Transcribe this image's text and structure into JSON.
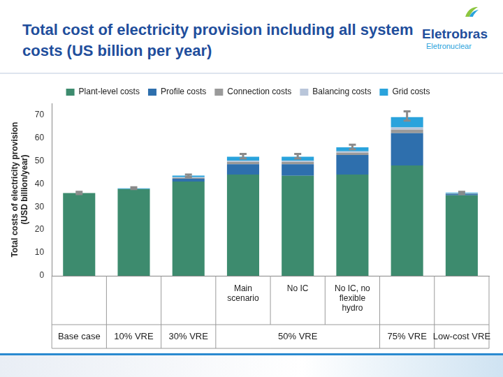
{
  "header": {
    "title": "Total cost of electricity provision including all system costs (US billion per year)",
    "logo_text": "Eletrobras",
    "logo_subtext": "Eletronuclear"
  },
  "chart_data": {
    "type": "bar",
    "stacked": true,
    "y_label": "Total costs of electricity provision (USD billion/year)",
    "categories": [
      null,
      null,
      null,
      "Main scenario",
      "No IC",
      "No IC, no flexible hydro",
      null,
      null
    ],
    "category_groups": [
      {
        "label": "Base case",
        "count": 1
      },
      {
        "label": "10% VRE",
        "count": 1
      },
      {
        "label": "30% VRE",
        "count": 1
      },
      {
        "label": "50% VRE",
        "count": 3
      },
      {
        "label": "75% VRE",
        "count": 1
      },
      {
        "label": "Low-cost VRE",
        "count": 1
      }
    ],
    "series": [
      {
        "name": "Plant-level costs",
        "color": "#3d8b6e",
        "values": [
          36,
          37.7,
          41,
          44,
          43.5,
          44,
          48,
          35
        ]
      },
      {
        "name": "Profile costs",
        "color": "#2e6fad",
        "values": [
          0,
          0,
          1.2,
          4.5,
          5,
          8.5,
          14,
          0.5
        ]
      },
      {
        "name": "Connection costs",
        "color": "#9a9a9a",
        "values": [
          0,
          0,
          0.4,
          1,
          1,
          1,
          1.5,
          0.2
        ]
      },
      {
        "name": "Balancing costs",
        "color": "#b9c6da",
        "values": [
          0,
          0,
          0.3,
          0.5,
          0.5,
          0.6,
          1,
          0.1
        ]
      },
      {
        "name": "Grid costs",
        "color": "#2aa3dc",
        "values": [
          0,
          0.3,
          0.7,
          1.8,
          1.8,
          1.8,
          4.5,
          0.3
        ]
      }
    ],
    "error_bars": {
      "low": [
        35.5,
        37.7,
        43,
        51,
        51,
        55,
        67.5,
        35.5
      ],
      "high": [
        36.5,
        38.5,
        44,
        53,
        53,
        57,
        71.5,
        36.5
      ]
    },
    "ylim": [
      0,
      75
    ],
    "yticks": [
      0,
      10,
      20,
      30,
      40,
      50,
      60,
      70
    ],
    "grid": false,
    "legend": "top"
  }
}
